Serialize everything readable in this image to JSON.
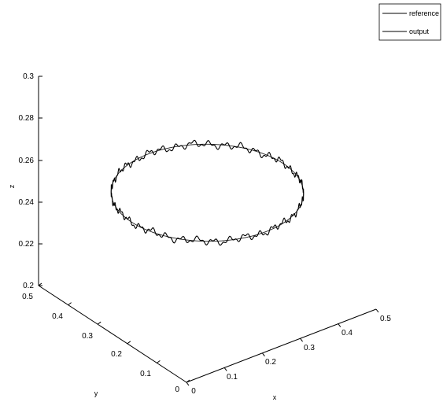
{
  "chart_data": {
    "type": "line",
    "title": "",
    "xlabel": "x",
    "ylabel": "y",
    "zlabel": "z",
    "xlim": [
      0,
      0.5
    ],
    "ylim": [
      0,
      0.5
    ],
    "zlim": [
      0.2,
      0.3
    ],
    "x_ticks": [
      "0",
      "0.1",
      "0.2",
      "0.3",
      "0.4",
      "0.5"
    ],
    "y_ticks": [
      "0",
      "0.1",
      "0.2",
      "0.3",
      "0.4",
      "0.5"
    ],
    "z_ticks": [
      "0.2",
      "0.22",
      "0.24",
      "0.26",
      "0.28",
      "0.3"
    ],
    "grid": false,
    "legend_position": "top-right",
    "series": [
      {
        "name": "reference",
        "shape": "circle",
        "center": {
          "x": 0.25,
          "y": 0.25,
          "z": 0.25
        },
        "radius": 0.2,
        "color": "#000000"
      },
      {
        "name": "output",
        "shape": "circle-with-oscillation",
        "center": {
          "x": 0.25,
          "y": 0.25,
          "z": 0.25
        },
        "radius": 0.2,
        "oscillation_z": 0.0012,
        "color": "#000000"
      }
    ]
  }
}
